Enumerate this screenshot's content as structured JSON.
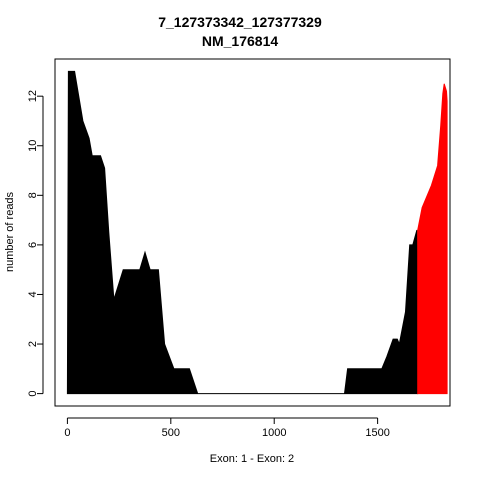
{
  "chart_data": {
    "type": "area",
    "title": "7_127373342_127377329",
    "subtitle": "NM_176814",
    "xlabel": "Exon: 1 - Exon: 2",
    "ylabel": "number of reads",
    "xlim": [
      -60,
      1850
    ],
    "ylim": [
      -0.5,
      13.5
    ],
    "xticks": [
      0,
      500,
      1000,
      1500
    ],
    "yticks": [
      0,
      2,
      4,
      6,
      8,
      10,
      12
    ],
    "grid": false,
    "series": [
      {
        "color": "#000000",
        "x": [
          0,
          5,
          35,
          75,
          105,
          120,
          160,
          180,
          200,
          225,
          270,
          350,
          375,
          400,
          440,
          470,
          515,
          590,
          630,
          1000,
          1340,
          1355,
          1520,
          1545,
          1575,
          1595,
          1605,
          1635,
          1655,
          1670,
          1690,
          1694
        ],
        "y": [
          0,
          13,
          13,
          11,
          10.3,
          9.6,
          9.6,
          9.1,
          6.5,
          3.8,
          5,
          5,
          5.7,
          5,
          5,
          2,
          1,
          1,
          0,
          0,
          0,
          1,
          1,
          1.5,
          2.2,
          2.2,
          2,
          3.3,
          6,
          6,
          6.6,
          0
        ]
      },
      {
        "color": "#ff0000",
        "x": [
          1694,
          1694,
          1715,
          1760,
          1790,
          1805,
          1815,
          1822,
          1833,
          1836,
          1836
        ],
        "y": [
          0,
          6.6,
          7.5,
          8.4,
          9.2,
          10.8,
          12.1,
          12.5,
          12.2,
          11.8,
          0
        ]
      }
    ]
  }
}
